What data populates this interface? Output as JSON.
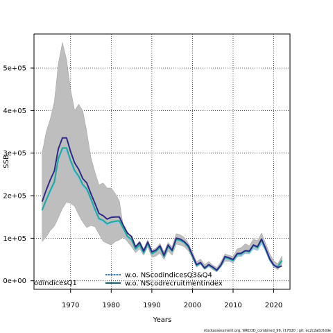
{
  "chart_data": {
    "type": "line",
    "title": "",
    "xlabel": "Years",
    "ylabel": "SSB",
    "xlim": [
      1961,
      2024
    ],
    "ylim": [
      -20000,
      580000
    ],
    "x_ticks": [
      1970,
      1980,
      1990,
      2000,
      2010,
      2020
    ],
    "x_tick_labels": [
      "1970",
      "1980",
      "1990",
      "2000",
      "2010",
      "2020"
    ],
    "y_ticks": [
      0,
      100000,
      200000,
      300000,
      400000,
      500000
    ],
    "y_tick_labels": [
      "0e+00",
      "1e+05",
      "2e+05",
      "3e+05",
      "4e+05",
      "5e+05"
    ],
    "grid": true,
    "legend_position": "bottom",
    "colors": {
      "band": "#bebebe",
      "band_edge": "#999999",
      "navy": "#2e2a86",
      "teal": "#2aa79b",
      "light_blue": "#8fc8ee",
      "grid": "#000000"
    },
    "x": [
      1963,
      1964,
      1965,
      1966,
      1967,
      1968,
      1969,
      1970,
      1971,
      1972,
      1973,
      1974,
      1975,
      1976,
      1977,
      1978,
      1979,
      1980,
      1981,
      1982,
      1983,
      1984,
      1985,
      1986,
      1987,
      1988,
      1989,
      1990,
      1991,
      1992,
      1993,
      1994,
      1995,
      1996,
      1997,
      1998,
      1999,
      2000,
      2001,
      2002,
      2003,
      2004,
      2005,
      2006,
      2007,
      2008,
      2009,
      2010,
      2011,
      2012,
      2013,
      2014,
      2015,
      2016,
      2017,
      2018,
      2019,
      2020,
      2021,
      2022
    ],
    "confidence_band": {
      "upper": [
        300000,
        350000,
        380000,
        420000,
        510000,
        560000,
        520000,
        450000,
        400000,
        415000,
        400000,
        350000,
        290000,
        255000,
        225000,
        230000,
        218000,
        218000,
        205000,
        188000,
        125000,
        115000,
        103000,
        82000,
        94000,
        75000,
        96000,
        72000,
        77000,
        88000,
        68000,
        90000,
        80000,
        111000,
        108000,
        102000,
        88000,
        68000,
        45000,
        51000,
        38000,
        45000,
        37000,
        31000,
        45000,
        63000,
        60000,
        57000,
        75000,
        78000,
        87000,
        82000,
        98000,
        94000,
        112000,
        88000,
        64000,
        47000,
        40000,
        58000
      ],
      "lower": [
        92000,
        103000,
        118000,
        128000,
        148000,
        170000,
        185000,
        182000,
        175000,
        155000,
        138000,
        125000,
        130000,
        127000,
        110000,
        93000,
        88000,
        84000,
        92000,
        96000,
        103000,
        92000,
        80000,
        66000,
        75000,
        60000,
        80000,
        55000,
        58000,
        65000,
        50000,
        70000,
        60000,
        86000,
        84000,
        80000,
        70000,
        52000,
        32000,
        38000,
        26000,
        33000,
        26000,
        21000,
        32000,
        46000,
        46000,
        42000,
        56000,
        58000,
        65000,
        63000,
        75000,
        71000,
        88000,
        68000,
        46000,
        32000,
        26000,
        40000
      ]
    },
    "series": [
      {
        "values": [
          186000,
          213000,
          237000,
          258000,
          310000,
          336000,
          336000,
          304000,
          277000,
          262000,
          240000,
          230000,
          205000,
          182000,
          158000,
          153000,
          145000,
          149000,
          150000,
          150000,
          130000,
          112000,
          104000,
          80000,
          90000,
          70000,
          91000,
          68000,
          72000,
          82000,
          60000,
          84000,
          72000,
          100000,
          98000,
          92000,
          82000,
          60000,
          38000,
          43000,
          30000,
          38000,
          32000,
          25000,
          37000,
          57000,
          54000,
          50000,
          64000,
          65000,
          71000,
          70000,
          84000,
          80000,
          98000,
          76000,
          52000,
          37000,
          31000,
          35000
        ]
      },
      {
        "values": [
          166000,
          190000,
          212000,
          232000,
          287000,
          312000,
          312000,
          283000,
          259000,
          246000,
          226000,
          216000,
          193000,
          168000,
          146000,
          142000,
          134000,
          138000,
          140000,
          141000,
          123000,
          104000,
          97000,
          75000,
          85000,
          66000,
          88000,
          64000,
          69000,
          79000,
          57000,
          81000,
          70000,
          97000,
          95000,
          90000,
          79000,
          58000,
          36000,
          42000,
          29000,
          37000,
          31000,
          24000,
          36000,
          55000,
          52000,
          48000,
          62000,
          63000,
          70000,
          68000,
          83000,
          78000,
          96000,
          75000,
          51000,
          36000,
          33000,
          48000
        ]
      },
      {
        "values": [
          164000,
          186000,
          207000,
          227000,
          281000,
          306000,
          306000,
          277000,
          253000,
          240000,
          220000,
          211000,
          188000,
          163000,
          142000,
          138000,
          130000,
          134000,
          136000,
          137000,
          120000,
          101000,
          94000,
          72000,
          82000,
          63000,
          85000,
          62000,
          67000,
          77000,
          55000,
          79000,
          68000,
          95000,
          93000,
          88000,
          77000,
          56000,
          34000,
          40000,
          28000,
          35000,
          29000,
          23000,
          34000,
          52000,
          50000,
          45000,
          58000,
          58000,
          65000,
          64000,
          76000,
          72000,
          88000,
          70000,
          48000,
          34000,
          31000,
          45000
        ]
      }
    ],
    "legend": [
      {
        "label": "w.o. NScodindicesQ3&Q4",
        "style": "dotted"
      },
      {
        "label": "w.o. NScodrecruitmentindex",
        "style": "solid"
      }
    ],
    "left_fragment_label": "odindicesQ1"
  },
  "footer_text": "stockassessment.org, WKCOD_combined_99, r17020 ; git: ec2c2a0c6dde"
}
